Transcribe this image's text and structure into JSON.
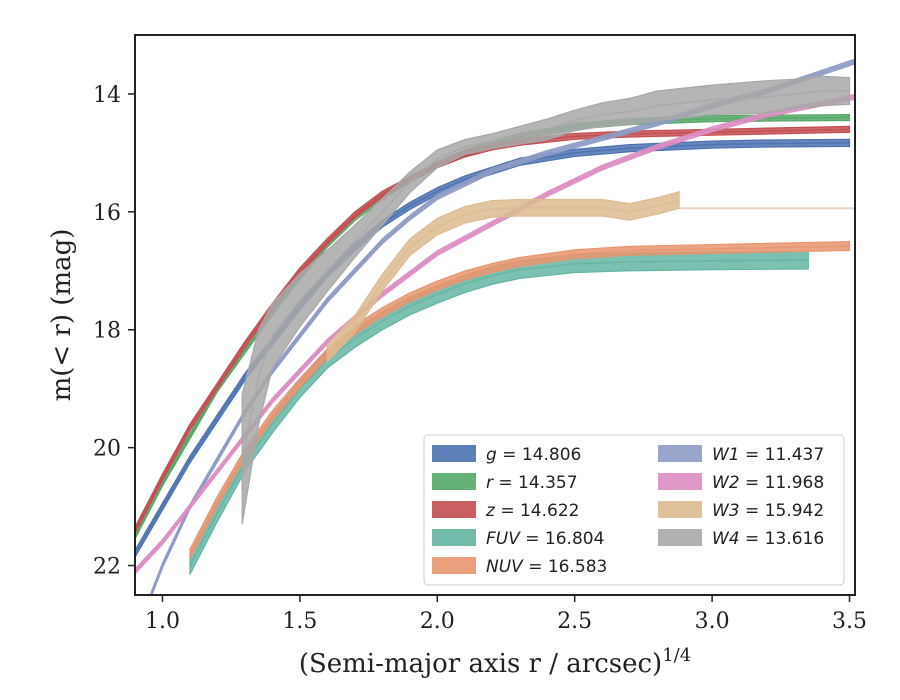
{
  "chart_data": {
    "type": "line",
    "xlabel": "(Semi-major axis r / arcsec)",
    "xlabel_exponent": "1/4",
    "ylabel": "m(< r) (mag)",
    "xlim": [
      0.9,
      3.52
    ],
    "ylim": [
      22.5,
      13.0
    ],
    "y_inverted": true,
    "grid": false,
    "legend_position": "lower-right",
    "xticks": [
      "1.0",
      "1.5",
      "2.0",
      "2.5",
      "3.0",
      "3.5"
    ],
    "xtick_values": [
      1.0,
      1.5,
      2.0,
      2.5,
      3.0,
      3.5
    ],
    "yticks": [
      "14",
      "16",
      "18",
      "20",
      "22"
    ],
    "ytick_values": [
      14,
      16,
      18,
      20,
      22
    ],
    "series": [
      {
        "name": "g = 14.806",
        "band": "g",
        "value": "14.806",
        "color": "#4c72b0",
        "x": [
          0.9,
          1.0,
          1.1,
          1.2,
          1.3,
          1.4,
          1.5,
          1.6,
          1.7,
          1.8,
          1.9,
          2.0,
          2.1,
          2.2,
          2.3,
          2.5,
          2.7,
          3.0,
          3.2,
          3.5
        ],
        "y": [
          21.8,
          21.0,
          20.2,
          19.5,
          18.8,
          18.2,
          17.6,
          17.05,
          16.6,
          16.2,
          15.9,
          15.65,
          15.45,
          15.3,
          15.15,
          15.0,
          14.92,
          14.86,
          14.84,
          14.83
        ],
        "width": 0.12
      },
      {
        "name": "r = 14.357",
        "band": "r",
        "value": "14.357",
        "color": "#55a868",
        "x": [
          0.9,
          1.0,
          1.1,
          1.2,
          1.3,
          1.4,
          1.5,
          1.6,
          1.7,
          1.8,
          1.9,
          2.0,
          2.1,
          2.2,
          2.3,
          2.5,
          2.7,
          3.0,
          3.2,
          3.5
        ],
        "y": [
          21.5,
          20.6,
          19.8,
          19.0,
          18.35,
          17.7,
          17.1,
          16.55,
          16.1,
          15.75,
          15.45,
          15.2,
          15.0,
          14.85,
          14.72,
          14.55,
          14.47,
          14.42,
          14.41,
          14.4
        ],
        "width": 0.1
      },
      {
        "name": "z = 14.622",
        "band": "z",
        "value": "14.622",
        "color": "#c44e52",
        "x": [
          0.9,
          1.0,
          1.1,
          1.2,
          1.3,
          1.4,
          1.5,
          1.6,
          1.7,
          1.8,
          1.9,
          2.0,
          2.1,
          2.2,
          2.3,
          2.5,
          2.7,
          3.0,
          3.2,
          3.5
        ],
        "y": [
          21.4,
          20.5,
          19.65,
          18.95,
          18.25,
          17.6,
          17.0,
          16.5,
          16.05,
          15.7,
          15.45,
          15.2,
          15.02,
          14.9,
          14.82,
          14.72,
          14.68,
          14.65,
          14.63,
          14.6
        ],
        "width": 0.1
      },
      {
        "name": "FUV = 16.804",
        "band": "FUV",
        "value": "16.804",
        "color": "#64b5a2",
        "x": [
          1.1,
          1.2,
          1.3,
          1.4,
          1.5,
          1.6,
          1.7,
          1.8,
          1.9,
          2.0,
          2.1,
          2.2,
          2.3,
          2.5,
          2.7,
          3.0,
          3.35
        ],
        "y": [
          22.0,
          21.1,
          20.25,
          19.6,
          19.0,
          18.5,
          18.15,
          17.85,
          17.6,
          17.4,
          17.22,
          17.08,
          16.98,
          16.88,
          16.85,
          16.83,
          16.82
        ],
        "width": 0.3
      },
      {
        "name": "NUV = 16.583",
        "band": "NUV",
        "value": "16.583",
        "color": "#e8956f",
        "x": [
          1.1,
          1.2,
          1.3,
          1.4,
          1.5,
          1.6,
          1.7,
          1.8,
          1.9,
          2.0,
          2.1,
          2.2,
          2.3,
          2.5,
          2.7,
          3.0,
          3.5
        ],
        "y": [
          21.8,
          20.9,
          20.1,
          19.45,
          18.9,
          18.4,
          18.0,
          17.7,
          17.45,
          17.25,
          17.08,
          16.95,
          16.85,
          16.72,
          16.66,
          16.63,
          16.58
        ],
        "width": 0.15
      },
      {
        "name": "W1 = 11.437",
        "band": "W1",
        "value": "11.437",
        "color": "#8e9bc5",
        "x": [
          0.95,
          1.0,
          1.1,
          1.2,
          1.3,
          1.4,
          1.5,
          1.6,
          1.7,
          1.8,
          1.9,
          2.0,
          2.2,
          2.4,
          2.6,
          2.8,
          3.0,
          3.2,
          3.52
        ],
        "y": [
          22.6,
          22.0,
          21.0,
          20.2,
          19.4,
          18.7,
          18.1,
          17.5,
          17.0,
          16.5,
          16.1,
          15.75,
          15.3,
          15.0,
          14.75,
          14.5,
          14.2,
          13.95,
          13.45
        ],
        "width": 0.08
      },
      {
        "name": "W2 = 11.968",
        "band": "W2",
        "value": "11.968",
        "color": "#dd8dc3",
        "x": [
          0.9,
          1.0,
          1.1,
          1.2,
          1.3,
          1.4,
          1.5,
          1.6,
          1.7,
          1.8,
          1.9,
          2.0,
          2.2,
          2.4,
          2.6,
          2.8,
          3.0,
          3.2,
          3.52
        ],
        "y": [
          22.1,
          21.6,
          21.0,
          20.4,
          19.8,
          19.2,
          18.7,
          18.2,
          17.8,
          17.4,
          17.05,
          16.7,
          16.2,
          15.7,
          15.25,
          14.9,
          14.6,
          14.35,
          14.05
        ],
        "width": 0.08
      },
      {
        "name": "W3 = 15.942",
        "band": "W3",
        "value": "15.942",
        "color": "#dcbb91",
        "x": [
          1.6,
          1.7,
          1.8,
          1.9,
          2.0,
          2.1,
          2.2,
          2.3,
          2.4,
          2.5,
          2.6,
          2.7,
          2.8,
          2.88
        ],
        "y": [
          18.4,
          17.9,
          17.2,
          16.6,
          16.25,
          16.05,
          15.95,
          15.93,
          15.93,
          15.93,
          15.93,
          16.0,
          15.9,
          15.8
        ],
        "width": 0.28,
        "tail": {
          "x": [
            2.88,
            3.52
          ],
          "y": [
            15.94,
            15.94
          ]
        }
      },
      {
        "name": "W4 = 13.616",
        "band": "W4",
        "value": "13.616",
        "color": "#a8a8a8",
        "x": [
          1.29,
          1.35,
          1.4,
          1.5,
          1.6,
          1.7,
          1.8,
          1.9,
          2.0,
          2.1,
          2.2,
          2.3,
          2.4,
          2.5,
          2.6,
          2.7,
          2.8,
          3.0,
          3.2,
          3.3,
          3.4,
          3.5
        ],
        "y": [
          20.2,
          18.8,
          18.1,
          17.5,
          17.0,
          16.5,
          16.0,
          15.5,
          15.1,
          14.9,
          14.8,
          14.7,
          14.6,
          14.45,
          14.35,
          14.3,
          14.2,
          14.1,
          14.05,
          14.0,
          13.95,
          13.95
        ],
        "width": [
          2.2,
          1.6,
          1.1,
          0.9,
          0.7,
          0.55,
          0.45,
          0.35,
          0.3,
          0.25,
          0.25,
          0.3,
          0.35,
          0.35,
          0.4,
          0.45,
          0.5,
          0.5,
          0.55,
          0.5,
          0.5,
          0.45
        ]
      }
    ]
  }
}
